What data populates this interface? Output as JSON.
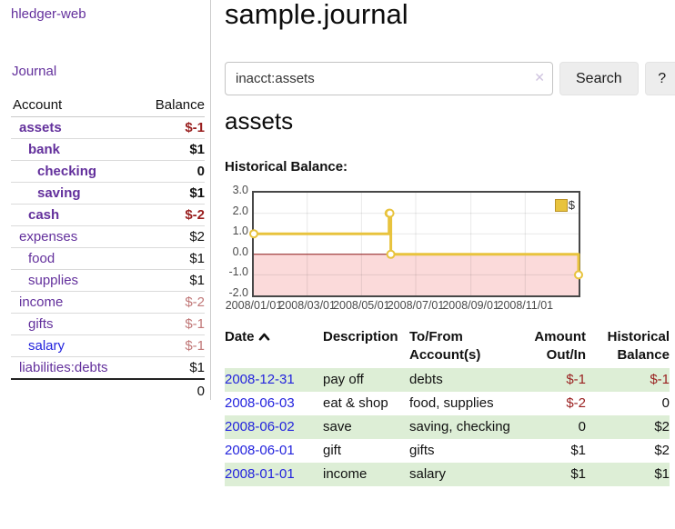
{
  "app": {
    "brand": "hledger-web",
    "nav_journal": "Journal"
  },
  "sidebar": {
    "table": {
      "headers": {
        "account": "Account",
        "balance": "Balance"
      },
      "rows": [
        {
          "account": "assets",
          "balance": "$-1",
          "level": 1,
          "bold": true
        },
        {
          "account": "bank",
          "balance": "$1",
          "level": 2,
          "bold": true
        },
        {
          "account": "checking",
          "balance": "0",
          "level": 3,
          "bold": true
        },
        {
          "account": "saving",
          "balance": "$1",
          "level": 3,
          "bold": true
        },
        {
          "account": "cash",
          "balance": "$-2",
          "level": 2,
          "bold": true
        },
        {
          "account": "expenses",
          "balance": "$2",
          "level": 1
        },
        {
          "account": "food",
          "balance": "$1",
          "level": 2
        },
        {
          "account": "supplies",
          "balance": "$1",
          "level": 2
        },
        {
          "account": "income",
          "balance": "$-2",
          "level": 1
        },
        {
          "account": "gifts",
          "balance": "$-1",
          "level": 2
        },
        {
          "account": "salary",
          "balance": "$-1",
          "level": 2,
          "unvisited": true
        },
        {
          "account": "liabilities:debts",
          "balance": "$1",
          "level": 1
        }
      ],
      "total": "0"
    }
  },
  "main": {
    "title": "sample.journal",
    "search": {
      "value": "inacct:assets",
      "clear_icon": "✕",
      "button": "Search",
      "help_button": "?"
    },
    "account_heading": "assets",
    "chart_label": "Historical Balance:"
  },
  "chart_data": {
    "type": "line",
    "steps": true,
    "title": "Historical Balance of assets",
    "x_start": "2008-01-01",
    "x_end": "2008-12-31",
    "ylim": [
      -2,
      3
    ],
    "y_ticks": [
      3.0,
      2.0,
      1.0,
      0.0,
      -1.0,
      -2.0
    ],
    "x_ticks": [
      "2008/01/01",
      "2008/03/01",
      "2008/05/01",
      "2008/07/01",
      "2008/09/01",
      "2008/11/01"
    ],
    "legend": "$",
    "legend_position": "top-right",
    "series": [
      {
        "name": "$",
        "color": "#e8c33d",
        "points": [
          [
            "2008-01-01",
            1
          ],
          [
            "2008-06-01",
            2
          ],
          [
            "2008-06-02",
            2
          ],
          [
            "2008-06-03",
            0
          ],
          [
            "2008-12-31",
            -1
          ]
        ]
      }
    ],
    "negative_region_color": "#fbdada",
    "zero_line_color": "#8b1414",
    "grid": true
  },
  "register": {
    "headers": [
      "Date",
      "Description",
      "To/From Account(s)",
      "Amount Out/In",
      "Historical Balance"
    ],
    "sort_column": "Date",
    "sort_direction": "asc",
    "rows": [
      {
        "date": "2008-12-31",
        "description": "pay off",
        "accounts": "debts",
        "amount": "$-1",
        "balance": "$-1"
      },
      {
        "date": "2008-06-03",
        "description": "eat & shop",
        "accounts": "food, supplies",
        "amount": "$-2",
        "balance": "0"
      },
      {
        "date": "2008-06-02",
        "description": "save",
        "accounts": "saving, checking",
        "amount": "0",
        "balance": "$2"
      },
      {
        "date": "2008-06-01",
        "description": "gift",
        "accounts": "gifts",
        "amount": "$1",
        "balance": "$2"
      },
      {
        "date": "2008-01-01",
        "description": "income",
        "accounts": "salary",
        "amount": "$1",
        "balance": "$1"
      }
    ]
  }
}
